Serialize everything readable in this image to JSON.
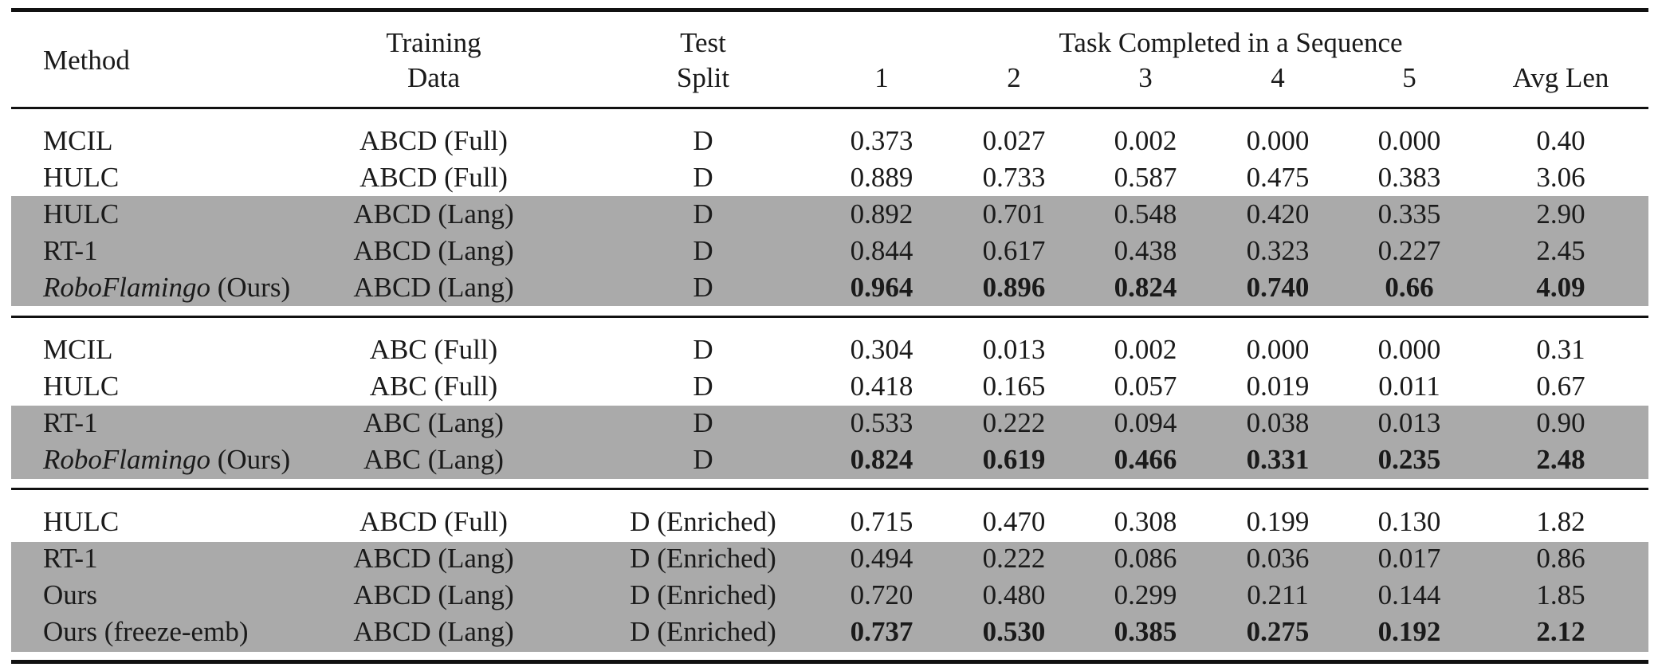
{
  "header": {
    "method": "Method",
    "training_line1": "Training",
    "training_line2": "Data",
    "test_line1": "Test",
    "test_line2": "Split",
    "task_group": "Task Completed in a Sequence",
    "cols": [
      "1",
      "2",
      "3",
      "4",
      "5"
    ],
    "avg": "Avg Len"
  },
  "rows": [
    {
      "method": "MCIL",
      "method_italic": "",
      "data": "ABCD (Full)",
      "split": "D",
      "v": [
        "0.373",
        "0.027",
        "0.002",
        "0.000",
        "0.000"
      ],
      "avg": "0.40",
      "bold": false
    },
    {
      "method": "HULC",
      "method_italic": "",
      "data": "ABCD (Full)",
      "split": "D",
      "v": [
        "0.889",
        "0.733",
        "0.587",
        "0.475",
        "0.383"
      ],
      "avg": "3.06",
      "bold": false
    },
    {
      "method": "HULC",
      "method_italic": "",
      "data": "ABCD (Lang)",
      "split": "D",
      "v": [
        "0.892",
        "0.701",
        "0.548",
        "0.420",
        "0.335"
      ],
      "avg": "2.90",
      "bold": false
    },
    {
      "method": "RT-1",
      "method_italic": "",
      "data": "ABCD (Lang)",
      "split": "D",
      "v": [
        "0.844",
        "0.617",
        "0.438",
        "0.323",
        "0.227"
      ],
      "avg": "2.45",
      "bold": false
    },
    {
      "method": " (Ours)",
      "method_italic": "RoboFlamingo",
      "data": "ABCD (Lang)",
      "split": "D",
      "v": [
        "0.964",
        "0.896",
        "0.824",
        "0.740",
        "0.66"
      ],
      "avg": "4.09",
      "bold": true
    },
    {
      "method": "MCIL",
      "method_italic": "",
      "data": "ABC (Full)",
      "split": "D",
      "v": [
        "0.304",
        "0.013",
        "0.002",
        "0.000",
        "0.000"
      ],
      "avg": "0.31",
      "bold": false
    },
    {
      "method": "HULC",
      "method_italic": "",
      "data": "ABC (Full)",
      "split": "D",
      "v": [
        "0.418",
        "0.165",
        "0.057",
        "0.019",
        "0.011"
      ],
      "avg": "0.67",
      "bold": false
    },
    {
      "method": "RT-1",
      "method_italic": "",
      "data": "ABC (Lang)",
      "split": "D",
      "v": [
        "0.533",
        "0.222",
        "0.094",
        "0.038",
        "0.013"
      ],
      "avg": "0.90",
      "bold": false
    },
    {
      "method": " (Ours)",
      "method_italic": "RoboFlamingo",
      "data": "ABC (Lang)",
      "split": "D",
      "v": [
        "0.824",
        "0.619",
        "0.466",
        "0.331",
        "0.235"
      ],
      "avg": "2.48",
      "bold": true
    },
    {
      "method": "HULC",
      "method_italic": "",
      "data": "ABCD (Full)",
      "split": "D (Enriched)",
      "v": [
        "0.715",
        "0.470",
        "0.308",
        "0.199",
        "0.130"
      ],
      "avg": "1.82",
      "bold": false
    },
    {
      "method": "RT-1",
      "method_italic": "",
      "data": "ABCD (Lang)",
      "split": "D (Enriched)",
      "v": [
        "0.494",
        "0.222",
        "0.086",
        "0.036",
        "0.017"
      ],
      "avg": "0.86",
      "bold": false
    },
    {
      "method": "Ours",
      "method_italic": "",
      "data": "ABCD (Lang)",
      "split": "D (Enriched)",
      "v": [
        "0.720",
        "0.480",
        "0.299",
        "0.211",
        "0.144"
      ],
      "avg": "1.85",
      "bold": false
    },
    {
      "method": "Ours (freeze-emb)",
      "method_italic": "",
      "data": "ABCD (Lang)",
      "split": "D (Enriched)",
      "v": [
        "0.737",
        "0.530",
        "0.385",
        "0.275",
        "0.192"
      ],
      "avg": "2.12",
      "bold": true
    }
  ]
}
